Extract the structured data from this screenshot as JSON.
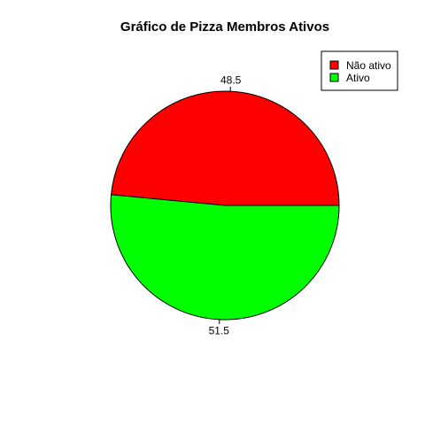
{
  "chart_data": {
    "type": "pie",
    "title": "Gráfico de Pizza Membros Ativos",
    "slices": [
      {
        "name": "Não ativo",
        "value": 48.5,
        "label": "48.5",
        "color": "#FF0000"
      },
      {
        "name": "Ativo",
        "value": 51.5,
        "label": "51.5",
        "color": "#00FF00"
      }
    ],
    "legend_position": "top-right",
    "start": "0 degrees (3 o'clock), counter-clockwise"
  }
}
